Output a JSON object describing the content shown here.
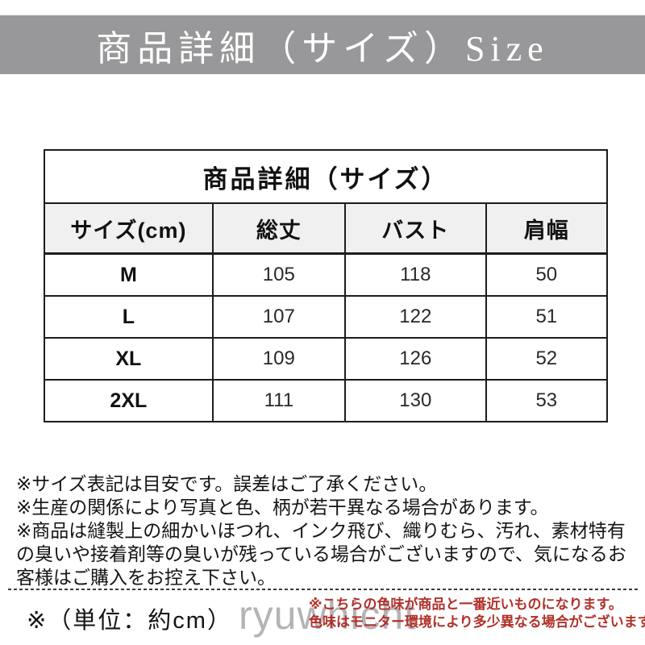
{
  "banner": {
    "title": "商品詳細（サイズ）Size",
    "bg_color": "#98989a",
    "text_color": "#ffffff"
  },
  "size_table": {
    "title": "商品詳細（サイズ）",
    "columns": [
      "サイズ(cm)",
      "総丈",
      "バスト",
      "肩幅"
    ],
    "rows": [
      [
        "M",
        "105",
        "118",
        "50"
      ],
      [
        "L",
        "107",
        "122",
        "51"
      ],
      [
        "XL",
        "109",
        "126",
        "52"
      ],
      [
        "2XL",
        "111",
        "130",
        "53"
      ]
    ],
    "header_bg_color": "#f0f0f0",
    "border_color": "#1c1c1c"
  },
  "notes": [
    "※サイズ表記は目安です。誤差はご了承ください。",
    "※生産の関係により写真と色、柄が若干異なる場合があります。",
    "※商品は縫製上の細かいほつれ、インク飛び、織りむら、汚れ、素材特有の臭いや接着剤等の臭いが残っている場合がございますので、気になるお客様はご購入をお控え下さい。"
  ],
  "footer": {
    "unit_note": "※（単位：約cm）",
    "watermark": "ryuwhicht",
    "color_note_line1": "※こちらの色味が商品と一番近いものになります。",
    "color_note_line2": "色味はモニター環境により多少異なる場合がございます。",
    "color_note_color": "#b1312a",
    "watermark_color": "#9c9ca0"
  }
}
